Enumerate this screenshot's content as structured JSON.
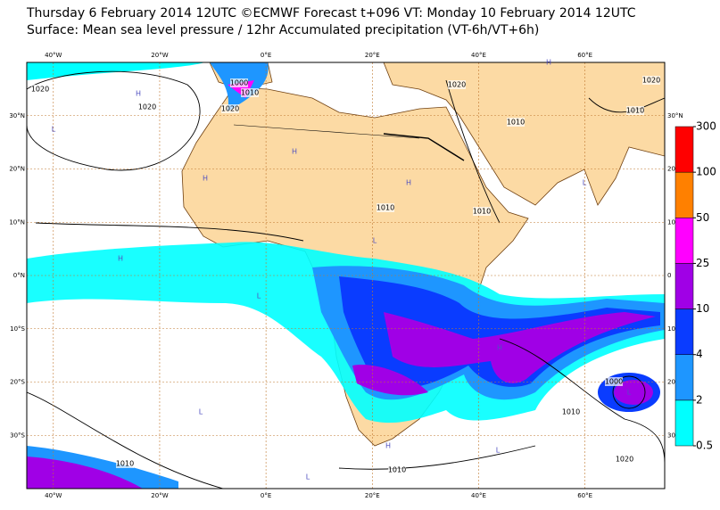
{
  "chart_data": {
    "type": "map",
    "title": "Thursday 6 February 2014 12UTC ©ECMWF Forecast t+096 VT: Monday 10 February 2014 12UTC",
    "subtitle": "Surface: Mean sea level pressure / 12hr Accumulated precipitation (VT-6h/VT+6h)",
    "xlim": [
      -45,
      75
    ],
    "ylim": [
      -40,
      40
    ],
    "xticks": [
      {
        "value": -40,
        "label": "40°W"
      },
      {
        "value": -20,
        "label": "20°W"
      },
      {
        "value": 0,
        "label": "0°E"
      },
      {
        "value": 20,
        "label": "20°E"
      },
      {
        "value": 40,
        "label": "40°E"
      },
      {
        "value": 60,
        "label": "60°E"
      }
    ],
    "yticks": [
      {
        "value": 30,
        "label": "30°N"
      },
      {
        "value": 20,
        "label": "20°N"
      },
      {
        "value": 10,
        "label": "10°N"
      },
      {
        "value": 0,
        "label": "0°N"
      },
      {
        "value": -10,
        "label": "10°S"
      },
      {
        "value": -20,
        "label": "20°S"
      },
      {
        "value": -30,
        "label": "30°S"
      }
    ],
    "yticks_right": [
      {
        "value": 30,
        "label": "30°N"
      },
      {
        "value": 20,
        "label": "20"
      },
      {
        "value": 10,
        "label": "10"
      },
      {
        "value": 0,
        "label": "0"
      },
      {
        "value": -10,
        "label": "10"
      },
      {
        "value": -20,
        "label": "20"
      },
      {
        "value": -30,
        "label": "30"
      }
    ],
    "colorbar": {
      "levels": [
        0.5,
        2,
        4,
        10,
        25,
        50,
        100,
        300
      ],
      "colors": [
        "#00ffff",
        "#1e96ff",
        "#0a3cff",
        "#a000e6",
        "#ff00ff",
        "#ff8000",
        "#ff0000"
      ]
    },
    "isobar_labels": [
      1020,
      1020,
      1000,
      1010,
      1020,
      1020,
      1010,
      1010,
      1020,
      1010,
      1010,
      1000,
      1010,
      1010,
      1010,
      1020
    ],
    "centers": [
      "H",
      "L",
      "H",
      "H",
      "L",
      "H",
      "L",
      "H",
      "L",
      "H",
      "L",
      "L",
      "H",
      "L",
      "H",
      "L"
    ]
  }
}
